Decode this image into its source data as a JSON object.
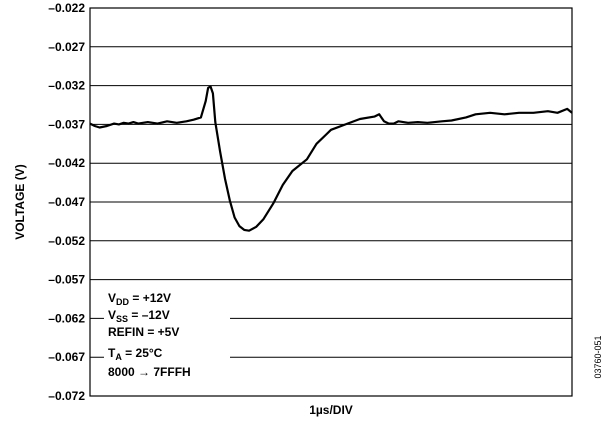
{
  "chart_data": {
    "type": "line",
    "xlabel": "1µs/DIV",
    "ylabel": "VOLTAGE (V)",
    "ylim": [
      -0.072,
      -0.022
    ],
    "xlim": [
      0,
      10
    ],
    "y_ticks": [
      "–0.022",
      "–0.027",
      "–0.032",
      "–0.037",
      "–0.042",
      "–0.047",
      "–0.052",
      "–0.057",
      "–0.062",
      "–0.067",
      "–0.072"
    ],
    "grid": "horizontal",
    "series": [
      {
        "x": [
          0,
          0.1,
          0.2,
          0.35,
          0.5,
          0.6,
          0.7,
          0.8,
          0.9,
          1.0,
          1.2,
          1.4,
          1.6,
          1.8,
          2.0,
          2.15,
          2.3,
          2.4,
          2.45,
          2.5,
          2.55,
          2.6,
          2.7,
          2.8,
          2.9,
          3.0,
          3.1,
          3.2,
          3.3,
          3.45,
          3.6,
          3.8,
          4.0,
          4.2,
          4.5,
          4.7,
          4.9,
          5.0,
          5.3,
          5.6,
          5.9,
          6.0,
          6.1,
          6.2,
          6.3,
          6.4,
          6.6,
          6.8,
          7.0,
          7.3,
          7.5,
          7.8,
          8.0,
          8.3,
          8.6,
          8.9,
          9.2,
          9.5,
          9.7,
          9.9,
          10.0
        ],
        "values": [
          -0.0369,
          -0.0372,
          -0.0374,
          -0.0372,
          -0.0369,
          -0.037,
          -0.0368,
          -0.0369,
          -0.0367,
          -0.0369,
          -0.0367,
          -0.0369,
          -0.0366,
          -0.0368,
          -0.0366,
          -0.0364,
          -0.0361,
          -0.034,
          -0.0323,
          -0.0321,
          -0.033,
          -0.0367,
          -0.0405,
          -0.044,
          -0.0468,
          -0.049,
          -0.0501,
          -0.0506,
          -0.0507,
          -0.0502,
          -0.0492,
          -0.0472,
          -0.0448,
          -0.043,
          -0.0415,
          -0.0395,
          -0.0383,
          -0.0377,
          -0.037,
          -0.0363,
          -0.036,
          -0.0357,
          -0.0366,
          -0.0369,
          -0.0369,
          -0.0366,
          -0.0368,
          -0.0367,
          -0.0368,
          -0.0366,
          -0.0365,
          -0.0361,
          -0.0357,
          -0.0355,
          -0.0357,
          -0.0355,
          -0.0355,
          -0.0353,
          -0.0355,
          -0.035,
          -0.0355
        ]
      }
    ],
    "annotations": {
      "vdd": {
        "main": "V",
        "sub": "DD",
        "rest": " = +12V"
      },
      "vss": {
        "main": "V",
        "sub": "SS",
        "rest": " = –12V"
      },
      "refin": "REFIN = +5V",
      "ta": {
        "main": "T",
        "sub": "A",
        "rest": " = 25°C"
      },
      "code": "8000 → 7FFFH"
    },
    "figure_code": "03760-051"
  }
}
